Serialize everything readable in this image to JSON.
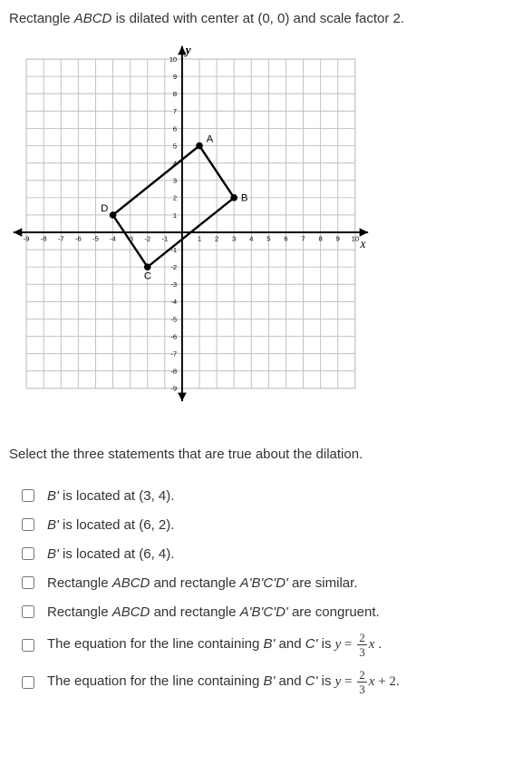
{
  "problem_text_prefix": "Rectangle ",
  "problem_text_rect": "ABCD",
  "problem_text_suffix": " is dilated with center at (0, 0) and scale factor 2.",
  "instruction": "Select the three statements that are true about the dilation.",
  "graph": {
    "background": "#ffffff",
    "grid_color": "#bfbfbf",
    "axis_color": "#000000",
    "min": -9,
    "max": 10,
    "cell": 20,
    "y_label": "y",
    "x_label": "x",
    "x_ticks": [
      -9,
      -8,
      -7,
      -6,
      -5,
      -4,
      -3,
      -2,
      -1,
      1,
      2,
      3,
      4,
      5,
      6,
      7,
      8,
      9,
      10
    ],
    "y_ticks": [
      10,
      9,
      8,
      7,
      6,
      5,
      4,
      3,
      2,
      1,
      -1,
      -2,
      -3,
      -4,
      -5,
      -6,
      -7,
      -8,
      -9
    ],
    "points": {
      "A": {
        "x": 1,
        "y": 5,
        "label": "A"
      },
      "B": {
        "x": 3,
        "y": 2,
        "label": "B"
      },
      "C": {
        "x": -2,
        "y": -2,
        "label": "C"
      },
      "D": {
        "x": -4,
        "y": 1,
        "label": "D"
      }
    },
    "point_radius": 4,
    "line_width": 2.5,
    "font_size_tick": 8,
    "font_size_label": 12,
    "font_size_axis": 14,
    "axis_font_style": "italic"
  },
  "options": [
    {
      "b_prime": "B'",
      "rest": "is located at (3, 4)."
    },
    {
      "b_prime": "B'",
      "rest": "is located at (6, 2)."
    },
    {
      "b_prime": "B'",
      "rest": "is located at (6, 4)."
    },
    {
      "pre": "Rectangle ",
      "r1": "ABCD",
      "mid": " and rectangle ",
      "r2": "A'B'C'D'",
      "post": " are similar."
    },
    {
      "pre": "Rectangle ",
      "r1": "ABCD",
      "mid": " and rectangle ",
      "r2": "A'B'C'D'",
      "post": " are congruent."
    },
    {
      "eq_pre": "The equation for the line containing ",
      "eq_b": "B'",
      "eq_and": " and ",
      "eq_c": "C'",
      "eq_is": " is ",
      "eq_var": "y",
      "eq_eq": " = ",
      "frac_n": "2",
      "frac_d": "3",
      "eq_x": "x",
      "eq_tail": " ."
    },
    {
      "eq_pre": "The equation for the line containing ",
      "eq_b": "B'",
      "eq_and": " and ",
      "eq_c": "C'",
      "eq_is": " is ",
      "eq_var": "y",
      "eq_eq": " = ",
      "frac_n": "2",
      "frac_d": "3",
      "eq_x": "x",
      "eq_tail": " + 2."
    }
  ]
}
